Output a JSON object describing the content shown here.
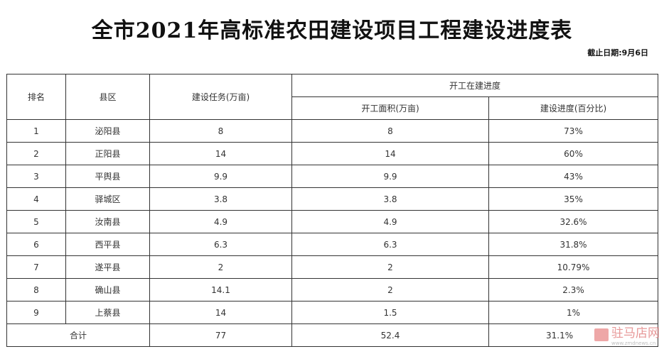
{
  "title": "全市2021年高标准农田建设项目工程建设进度表",
  "date_label": "截止日期:9月6日",
  "table": {
    "headers": {
      "rank": "排名",
      "county": "县区",
      "task": "建设任务(万亩)",
      "group": "开工在建进度",
      "area": "开工面积(万亩)",
      "progress": "建设进度(百分比)"
    },
    "rows": [
      {
        "rank": "1",
        "county": "泌阳县",
        "task": "8",
        "area": "8",
        "progress": "73%"
      },
      {
        "rank": "2",
        "county": "正阳县",
        "task": "14",
        "area": "14",
        "progress": "60%"
      },
      {
        "rank": "3",
        "county": "平舆县",
        "task": "9.9",
        "area": "9.9",
        "progress": "43%"
      },
      {
        "rank": "4",
        "county": "驿城区",
        "task": "3.8",
        "area": "3.8",
        "progress": "35%"
      },
      {
        "rank": "5",
        "county": "汝南县",
        "task": "4.9",
        "area": "4.9",
        "progress": "32.6%"
      },
      {
        "rank": "6",
        "county": "西平县",
        "task": "6.3",
        "area": "6.3",
        "progress": "31.8%"
      },
      {
        "rank": "7",
        "county": "遂平县",
        "task": "2",
        "area": "2",
        "progress": "10.79%"
      },
      {
        "rank": "8",
        "county": "确山县",
        "task": "14.1",
        "area": "2",
        "progress": "2.3%"
      },
      {
        "rank": "9",
        "county": "上蔡县",
        "task": "14",
        "area": "1.5",
        "progress": "1%"
      }
    ],
    "total": {
      "label": "合计",
      "task": "77",
      "area": "52.4",
      "progress": "31.1%"
    }
  },
  "watermark": {
    "text": "驻马店网",
    "url": "www.zmdnews.cn"
  }
}
